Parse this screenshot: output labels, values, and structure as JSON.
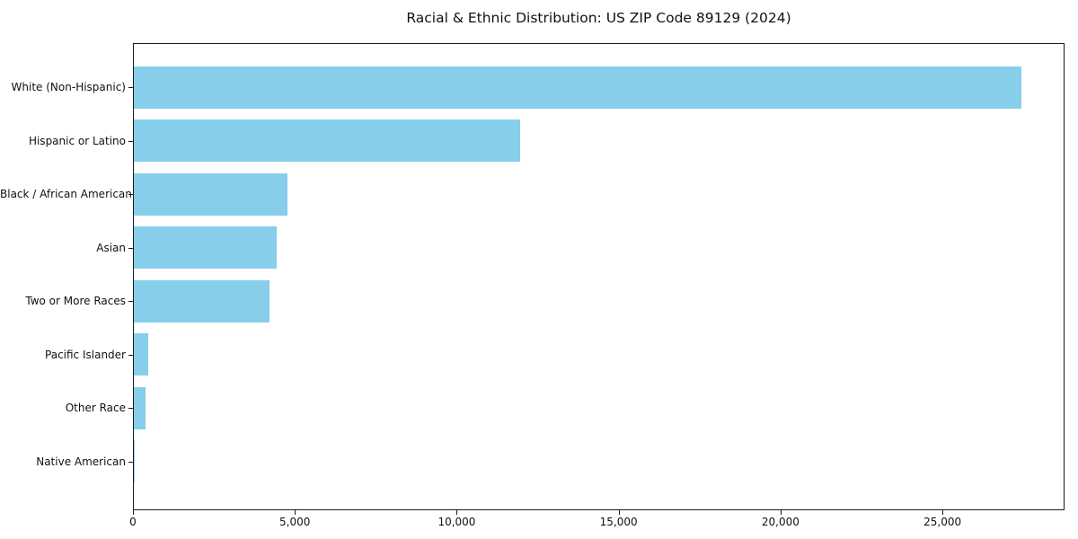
{
  "chart_data": {
    "type": "bar",
    "orientation": "horizontal",
    "title": "Racial & Ethnic Distribution: US ZIP Code 89129 (2024)",
    "categories": [
      "White (Non-Hispanic)",
      "Hispanic or Latino",
      "Black / African American",
      "Asian",
      "Two or More Races",
      "Pacific Islander",
      "Other Race",
      "Native American"
    ],
    "values": [
      27400,
      11930,
      4740,
      4410,
      4200,
      450,
      370,
      30
    ],
    "xlabel": "",
    "ylabel": "",
    "xlim": [
      0,
      28770
    ],
    "xticks": [
      0,
      5000,
      10000,
      15000,
      20000,
      25000
    ],
    "xtick_labels": [
      "0",
      "5,000",
      "10,000",
      "15,000",
      "20,000",
      "25,000"
    ],
    "bar_color": "#87CEEB",
    "grid": false,
    "legend": false
  }
}
